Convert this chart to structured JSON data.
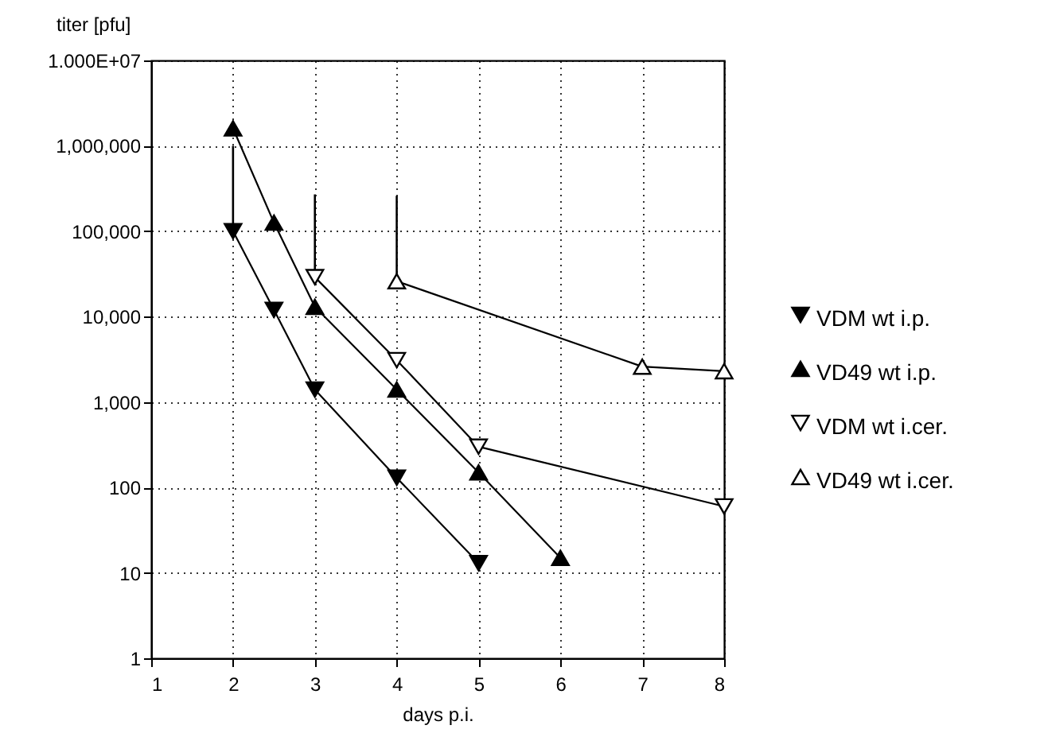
{
  "chart_data": {
    "type": "line",
    "xlabel": "days p.i.",
    "ylabel": "titer [pfu]",
    "xlim": [
      1,
      8
    ],
    "xticks": [
      1,
      2,
      3,
      4,
      5,
      6,
      7,
      8
    ],
    "ylim": [
      1,
      10000000
    ],
    "log": true,
    "yticks": [
      {
        "value": 1,
        "label": "1"
      },
      {
        "value": 10,
        "label": "10"
      },
      {
        "value": 100,
        "label": "100"
      },
      {
        "value": 1000,
        "label": "1,000"
      },
      {
        "value": 10000,
        "label": "10,000"
      },
      {
        "value": 100000,
        "label": "100,000"
      },
      {
        "value": 1000000,
        "label": "1,000,000"
      },
      {
        "value": 10000000,
        "label": "1.000E+07"
      }
    ],
    "grid": true,
    "legend": "right",
    "series": [
      {
        "name": "VDM wt i.p.",
        "color": "#000000",
        "marker": "triangle-down",
        "x": [
          2,
          2.5,
          3,
          4,
          5
        ],
        "values": [
          100000,
          12000,
          1400,
          130,
          13
        ],
        "errors": [
          [
            100000,
            1000000
          ],
          null,
          null,
          null,
          null
        ]
      },
      {
        "name": "VD49 wt i.p.",
        "color": "#000000",
        "marker": "triangle",
        "x": [
          2,
          2.5,
          3,
          4,
          5,
          6
        ],
        "values": [
          1600000,
          126000,
          13000,
          1400,
          150,
          15
        ]
      },
      {
        "name": "VDM wt i.cer.",
        "color": "#000000",
        "marker": "triangle-down-open",
        "x": [
          3,
          4,
          5,
          8
        ],
        "values": [
          29000,
          3100,
          300,
          60
        ],
        "errors": [
          [
            29000,
            270000
          ],
          null,
          null,
          null
        ]
      },
      {
        "name": "VD49 wt i.cer.",
        "color": "#000000",
        "marker": "triangle-open",
        "x": [
          4,
          7,
          8
        ],
        "values": [
          26000,
          2600,
          2300
        ],
        "errors": [
          [
            26000,
            260000
          ],
          null,
          null
        ]
      }
    ]
  }
}
